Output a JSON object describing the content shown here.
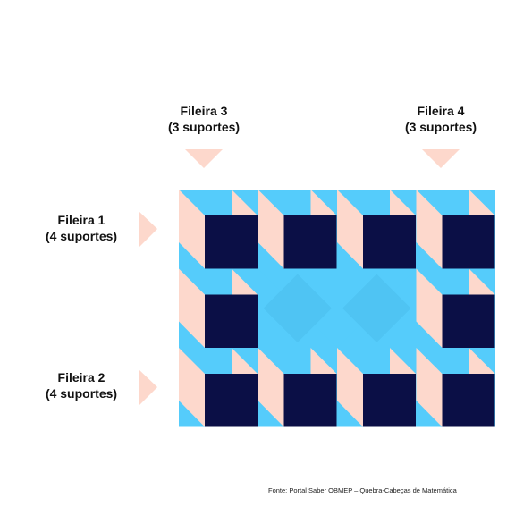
{
  "labels": {
    "row3": {
      "line1": "Fileira 3",
      "line2": "(3 suportes)"
    },
    "row4": {
      "line1": "Fileira 4",
      "line2": "(3 suportes)"
    },
    "row1": {
      "line1": "Fileira 1",
      "line2": "(4 suportes)"
    },
    "row2": {
      "line1": "Fileira 2",
      "line2": "(4 suportes)"
    }
  },
  "source": "Fonte: Portal Saber OBMEP – Quebra-Cabeças de Matemática",
  "colors": {
    "navy": "#0b0f46",
    "cyan": "#55ccfb",
    "peach": "#fdd8cc",
    "text": "#111111"
  },
  "grid": {
    "columns": 4,
    "rows": 3,
    "dark_cubes": [
      [
        true,
        true,
        true,
        true
      ],
      [
        true,
        false,
        false,
        true
      ],
      [
        true,
        true,
        true,
        true
      ]
    ]
  }
}
